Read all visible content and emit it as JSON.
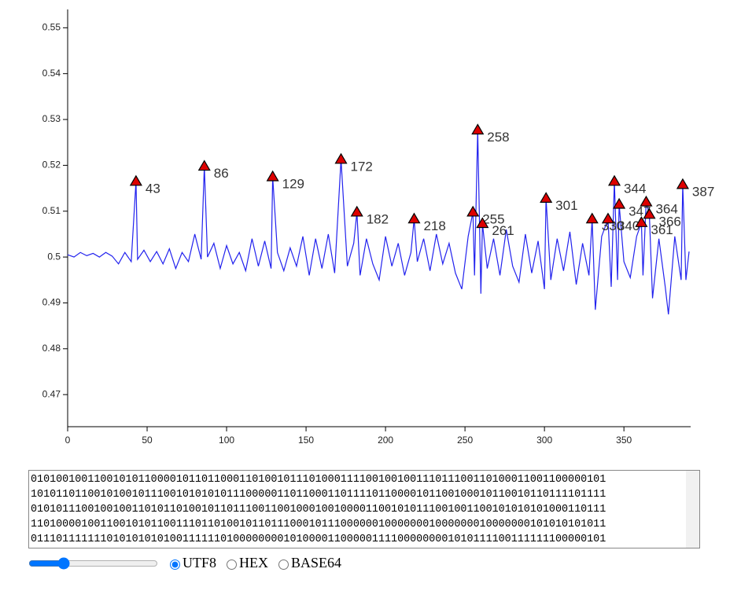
{
  "chart_data": {
    "type": "line",
    "x": [
      0,
      4,
      8,
      12,
      16,
      20,
      24,
      28,
      32,
      36,
      40,
      43,
      44,
      48,
      52,
      56,
      60,
      64,
      68,
      72,
      76,
      80,
      84,
      86,
      88,
      92,
      96,
      100,
      104,
      108,
      112,
      116,
      120,
      124,
      128,
      129,
      132,
      136,
      140,
      144,
      148,
      152,
      156,
      160,
      164,
      168,
      172,
      176,
      180,
      182,
      184,
      188,
      192,
      196,
      200,
      204,
      208,
      212,
      216,
      218,
      220,
      224,
      228,
      232,
      236,
      240,
      244,
      248,
      252,
      255,
      256,
      258,
      260,
      261,
      264,
      268,
      272,
      276,
      280,
      284,
      288,
      292,
      296,
      300,
      301,
      304,
      308,
      312,
      316,
      320,
      324,
      328,
      330,
      332,
      336,
      340,
      342,
      344,
      346,
      347,
      350,
      354,
      358,
      361,
      362,
      364,
      366,
      368,
      372,
      376,
      378,
      382,
      386,
      387,
      389,
      391
    ],
    "series": [
      {
        "color": "#2222ee",
        "values": [
          0.5005,
          0.5,
          0.501,
          0.5003,
          0.5008,
          0.5,
          0.501,
          0.5002,
          0.4985,
          0.501,
          0.499,
          0.5165,
          0.4995,
          0.5015,
          0.499,
          0.5012,
          0.4985,
          0.5018,
          0.4975,
          0.501,
          0.499,
          0.505,
          0.4995,
          0.5198,
          0.5,
          0.503,
          0.4975,
          0.5025,
          0.4985,
          0.501,
          0.497,
          0.504,
          0.498,
          0.5035,
          0.4975,
          0.5175,
          0.501,
          0.497,
          0.502,
          0.498,
          0.5045,
          0.496,
          0.504,
          0.4975,
          0.505,
          0.4965,
          0.5213,
          0.498,
          0.503,
          0.5098,
          0.496,
          0.504,
          0.4985,
          0.495,
          0.5045,
          0.498,
          0.503,
          0.496,
          0.501,
          0.5083,
          0.499,
          0.504,
          0.497,
          0.505,
          0.4985,
          0.503,
          0.4965,
          0.493,
          0.5045,
          0.5098,
          0.496,
          0.5277,
          0.492,
          0.5073,
          0.4975,
          0.504,
          0.496,
          0.506,
          0.498,
          0.4945,
          0.505,
          0.4965,
          0.5035,
          0.493,
          0.5128,
          0.495,
          0.504,
          0.497,
          0.5055,
          0.494,
          0.503,
          0.496,
          0.5083,
          0.4885,
          0.5045,
          0.5083,
          0.4935,
          0.5165,
          0.495,
          0.5115,
          0.499,
          0.4955,
          0.5045,
          0.5075,
          0.496,
          0.512,
          0.5093,
          0.491,
          0.504,
          0.4935,
          0.4875,
          0.5045,
          0.495,
          0.5158,
          0.495,
          0.5012
        ]
      }
    ],
    "peaks": {
      "color": "#dd0000",
      "x": [
        43,
        86,
        129,
        172,
        182,
        218,
        255,
        258,
        261,
        301,
        330,
        340,
        344,
        347,
        361,
        364,
        366,
        387
      ],
      "y": [
        0.5165,
        0.5198,
        0.5175,
        0.5213,
        0.5098,
        0.5083,
        0.5098,
        0.5277,
        0.5073,
        0.5128,
        0.5083,
        0.5083,
        0.5165,
        0.5115,
        0.5075,
        0.512,
        0.5093,
        0.5158
      ]
    },
    "xlim": [
      0,
      391
    ],
    "xticks": [
      0,
      50,
      100,
      150,
      200,
      250,
      300,
      350
    ],
    "ylim": [
      0.463,
      0.554
    ],
    "yticks": [
      0.47,
      0.48,
      0.49,
      0.5,
      0.51,
      0.52,
      0.53,
      0.54,
      0.55
    ]
  },
  "bits": {
    "lines": [
      "0101001001100101011000010110110001101001011101000111100100100111011100110100011001100000101",
      "1010110110010100101110010101010111000001101100011011110110000101100100010110010110111101111",
      "0101011100100100110101101001011011100110010001001000011001010111001001100101010101000110111",
      "1101000010011001010110011101101001011011100010111000000100000001000000010000000101010101011",
      "0111011111110101010101001111110100000000101000011000001111000000001010111100111111100000101"
    ]
  },
  "encoding": {
    "options": [
      "UTF8",
      "HEX",
      "BASE64"
    ],
    "selected_index": 0
  }
}
